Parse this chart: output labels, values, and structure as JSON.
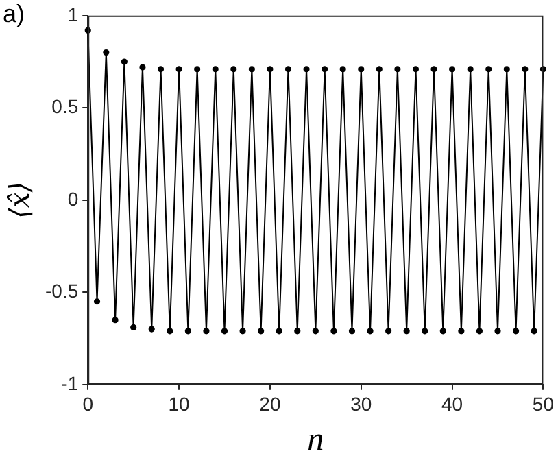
{
  "chart_data": {
    "type": "line",
    "title": "a)",
    "xlabel": "n",
    "ylabel": "⟨x̂⟩",
    "x": [
      0,
      1,
      2,
      3,
      4,
      5,
      6,
      7,
      8,
      9,
      10,
      11,
      12,
      13,
      14,
      15,
      16,
      17,
      18,
      19,
      20,
      21,
      22,
      23,
      24,
      25,
      26,
      27,
      28,
      29,
      30,
      31,
      32,
      33,
      34,
      35,
      36,
      37,
      38,
      39,
      40,
      41,
      42,
      43,
      44,
      45,
      46,
      47,
      48,
      49,
      50
    ],
    "series": [
      {
        "color": "#000000",
        "values": [
          0.92,
          -0.55,
          0.8,
          -0.65,
          0.75,
          -0.69,
          0.72,
          -0.7,
          0.71,
          -0.71,
          0.71,
          -0.71,
          0.71,
          -0.71,
          0.71,
          -0.71,
          0.71,
          -0.71,
          0.71,
          -0.71,
          0.71,
          -0.71,
          0.71,
          -0.71,
          0.71,
          -0.71,
          0.71,
          -0.71,
          0.71,
          -0.71,
          0.71,
          -0.71,
          0.71,
          -0.71,
          0.71,
          -0.71,
          0.71,
          -0.71,
          0.71,
          -0.71,
          0.71,
          -0.71,
          0.71,
          -0.71,
          0.71,
          -0.71,
          0.71,
          -0.71,
          0.71,
          -0.71,
          0.71
        ]
      }
    ],
    "xlim": [
      0,
      50
    ],
    "xticks": [
      0,
      10,
      20,
      30,
      40,
      50
    ],
    "ylim": [
      -1,
      1
    ],
    "yticks": [
      -1,
      -0.5,
      0,
      0.5,
      1
    ],
    "grid": false,
    "legend": false,
    "marker": "circle",
    "line_style": "solid"
  }
}
